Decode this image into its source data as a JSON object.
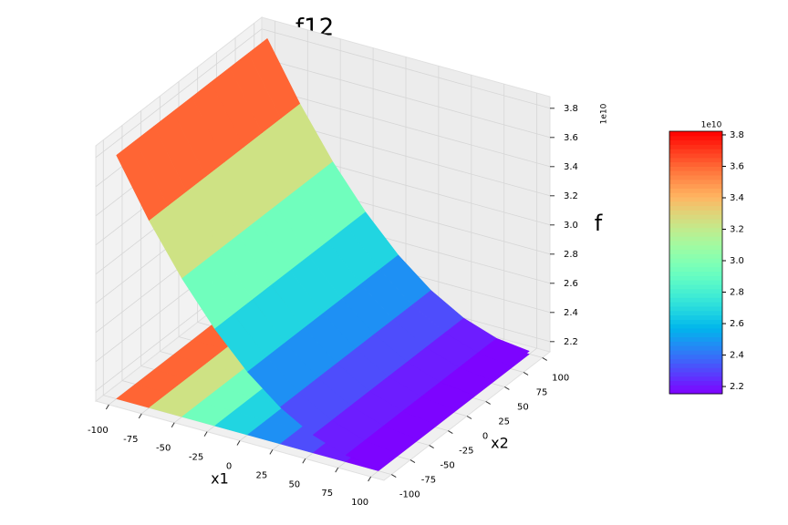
{
  "chart_data": {
    "type": "surface3d",
    "title": "f12",
    "xlabel": "x1",
    "ylabel": "x2",
    "zlabel": "f",
    "x": [
      -100,
      -75,
      -50,
      -25,
      0,
      25,
      50,
      75,
      100
    ],
    "y": [
      -100,
      -75,
      -50,
      -25,
      0,
      25,
      50,
      75,
      100
    ],
    "z": [
      [
        3.8,
        3.413,
        3.078,
        2.795,
        2.562,
        2.382,
        2.253,
        2.176,
        2.15
      ],
      [
        3.8,
        3.413,
        3.078,
        2.795,
        2.562,
        2.382,
        2.253,
        2.176,
        2.15
      ],
      [
        3.8,
        3.413,
        3.078,
        2.795,
        2.562,
        2.382,
        2.253,
        2.176,
        2.15
      ],
      [
        3.8,
        3.413,
        3.078,
        2.795,
        2.562,
        2.382,
        2.253,
        2.176,
        2.15
      ],
      [
        3.8,
        3.413,
        3.078,
        2.795,
        2.562,
        2.382,
        2.253,
        2.176,
        2.15
      ],
      [
        3.8,
        3.413,
        3.078,
        2.795,
        2.562,
        2.382,
        2.253,
        2.176,
        2.15
      ],
      [
        3.8,
        3.413,
        3.078,
        2.795,
        2.562,
        2.382,
        2.253,
        2.176,
        2.15
      ],
      [
        3.8,
        3.413,
        3.078,
        2.795,
        2.562,
        2.382,
        2.253,
        2.176,
        2.15
      ],
      [
        3.8,
        3.413,
        3.078,
        2.795,
        2.562,
        2.382,
        2.253,
        2.176,
        2.15
      ]
    ],
    "xlim": [
      -110,
      110
    ],
    "ylim": [
      -110,
      110
    ],
    "zlim": [
      2.13,
      3.88
    ],
    "xticks": [
      -100,
      -75,
      -50,
      -25,
      0,
      25,
      50,
      75,
      100
    ],
    "yticks": [
      -100,
      -75,
      -50,
      -25,
      0,
      25,
      50,
      75,
      100
    ],
    "zticks": [
      2.2,
      2.4,
      2.6,
      2.8,
      {
        "value": 3,
        "label": "3.0"
      },
      3.2,
      3.4,
      3.6,
      3.8
    ],
    "z_offset_label": "1e10",
    "colormap": "rainbow",
    "colorbar": {
      "clim": [
        2.154,
        3.823
      ],
      "ticks": [
        2.2,
        2.4,
        2.6,
        2.8,
        {
          "value": 3,
          "label": "3.0"
        },
        3.2,
        3.4,
        3.6,
        3.8
      ],
      "offset_label": "1e10"
    }
  }
}
